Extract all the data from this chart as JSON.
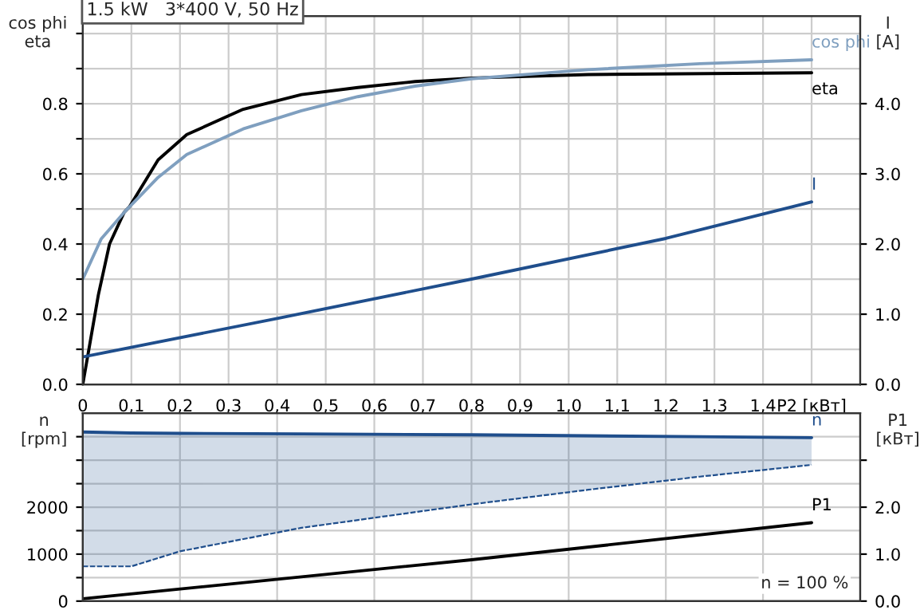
{
  "chart_data": [
    {
      "type": "line",
      "title": "1.5 kW   3*400 V, 50 Hz",
      "ylabel": "cos phi\neta",
      "y2label": "I\n[A]",
      "xlim": [
        0,
        1.6
      ],
      "xticks": [
        {
          "value": 0,
          "label": "0"
        },
        {
          "value": 0.1,
          "label": "0,1"
        },
        {
          "value": 0.2,
          "label": "0,2"
        },
        {
          "value": 0.3,
          "label": "0,3"
        },
        {
          "value": 0.4,
          "label": "0,4"
        },
        {
          "value": 0.5,
          "label": "0,5"
        },
        {
          "value": 0.6,
          "label": "0,6"
        },
        {
          "value": 0.7,
          "label": "0,7"
        },
        {
          "value": 0.8,
          "label": "0,8"
        },
        {
          "value": 0.9,
          "label": "0,9"
        },
        {
          "value": 1.0,
          "label": "1,0"
        },
        {
          "value": 1.1,
          "label": "1,1"
        },
        {
          "value": 1.2,
          "label": "1,2"
        },
        {
          "value": 1.3,
          "label": "1,3"
        },
        {
          "value": 1.4,
          "label": "1,4"
        },
        {
          "value": 1.5,
          "label": "P2 [кВт]"
        }
      ],
      "ylim": [
        0,
        1.05
      ],
      "yticks": [
        {
          "value": 0,
          "label": "0.0"
        },
        {
          "value": 0.1,
          "label": null
        },
        {
          "value": 0.2,
          "label": "0.2"
        },
        {
          "value": 0.3,
          "label": null
        },
        {
          "value": 0.4,
          "label": "0.4"
        },
        {
          "value": 0.5,
          "label": null
        },
        {
          "value": 0.6,
          "label": "0.6"
        },
        {
          "value": 0.7,
          "label": null
        },
        {
          "value": 0.8,
          "label": "0.8"
        },
        {
          "value": 0.9,
          "label": null
        },
        {
          "value": 1.0,
          "label": null
        }
      ],
      "y2lim": [
        0,
        5.25
      ],
      "y2ticks": [
        {
          "value": 0,
          "label": "0.0"
        },
        {
          "value": 1,
          "label": "1.0"
        },
        {
          "value": 2,
          "label": "2.0"
        },
        {
          "value": 3,
          "label": "3.0"
        },
        {
          "value": 4,
          "label": "4.0"
        }
      ],
      "grid": true,
      "legend": false,
      "series": [
        {
          "name": "eta",
          "color": "#000000",
          "x": [
            0,
            0.032,
            0.055,
            0.085,
            0.096,
            0.155,
            0.214,
            0.33,
            0.45,
            0.566,
            0.684,
            0.8,
            1.04,
            1.5
          ],
          "values": [
            0,
            0.255,
            0.4,
            0.49,
            0.506,
            0.64,
            0.712,
            0.784,
            0.826,
            0.846,
            0.863,
            0.873,
            0.883,
            0.888
          ]
        },
        {
          "name": "cos phi",
          "color": "#7f9fbf",
          "x": [
            0,
            0.038,
            0.085,
            0.155,
            0.214,
            0.33,
            0.45,
            0.566,
            0.684,
            0.8,
            1.04,
            1.27,
            1.5
          ],
          "values": [
            0.3,
            0.415,
            0.49,
            0.59,
            0.655,
            0.728,
            0.78,
            0.82,
            0.85,
            0.871,
            0.897,
            0.914,
            0.925
          ]
        },
        {
          "name": "I",
          "color": "#1f4e8c",
          "axis": "y2",
          "x": [
            0,
            0.4,
            0.8,
            1.2,
            1.5
          ],
          "values": [
            0.39,
            0.94,
            1.5,
            2.08,
            2.6
          ]
        }
      ]
    },
    {
      "type": "line",
      "ylabel": "n\n[rpm]",
      "y2label": "P1\n[кВт]",
      "tick_labels": "y",
      "xlim": [
        0,
        1.6
      ],
      "xticks": [
        {
          "value": 0,
          "label": null
        },
        {
          "value": 0.2,
          "label": null
        },
        {
          "value": 0.4,
          "label": null
        },
        {
          "value": 0.6,
          "label": null
        },
        {
          "value": 0.8,
          "label": null
        },
        {
          "value": 1.0,
          "label": null
        },
        {
          "value": 1.2,
          "label": null
        },
        {
          "value": 1.4,
          "label": null
        }
      ],
      "ylim": [
        0,
        4000
      ],
      "yticks": [
        0,
        {
          "value": 500,
          "label": null
        },
        1000,
        {
          "value": 1500,
          "label": null
        },
        2000,
        {
          "value": 2500,
          "label": null
        },
        {
          "value": 3000,
          "label": null
        },
        {
          "value": 3500,
          "label": null
        }
      ],
      "y2lim": [
        0,
        4
      ],
      "y2ticks": [
        {
          "value": 0,
          "label": "0.0"
        },
        {
          "value": 1,
          "label": "1.0"
        },
        {
          "value": 2,
          "label": "2.0"
        },
        {
          "value": 3,
          "label": null
        }
      ],
      "grid": true,
      "legend": false,
      "annotations": [
        "n = 100 %"
      ],
      "series": [
        {
          "name": "n",
          "color": "#1f4e8c",
          "x": [
            0,
            0.1,
            0.2,
            0.45,
            0.8,
            1.04,
            1.27,
            1.5
          ],
          "values": [
            3600,
            3580,
            3570,
            3560,
            3540,
            3520,
            3500,
            3480
          ],
          "lower": [
            740,
            740,
            1060,
            1560,
            2060,
            2370,
            2650,
            2900
          ],
          "upper": [
            3600,
            3580,
            3570,
            3560,
            3540,
            3520,
            3500,
            3480
          ]
        },
        {
          "color": "#1f4e8c",
          "line_style": "dashed",
          "x": [
            0,
            0.1,
            0.2,
            0.45,
            0.8,
            1.04,
            1.27,
            1.5
          ],
          "values": [
            740,
            740,
            1060,
            1560,
            2060,
            2370,
            2650,
            2900
          ]
        },
        {
          "name": "P1",
          "color": "#000000",
          "axis": "y2",
          "x": [
            0,
            0.8,
            1.5
          ],
          "values": [
            0.05,
            0.88,
            1.67
          ]
        }
      ]
    }
  ]
}
